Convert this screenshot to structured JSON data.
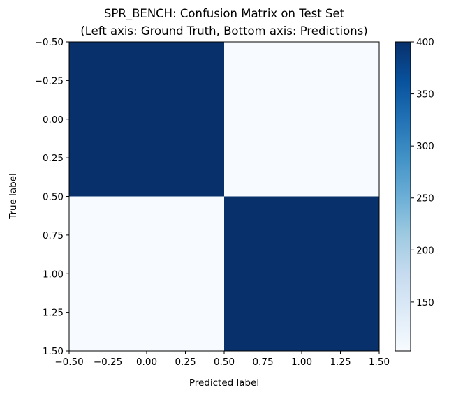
{
  "chart_data": {
    "type": "heatmap",
    "title": "SPR_BENCH: Confusion Matrix on Test Set",
    "subtitle": "(Left axis: Ground Truth, Bottom axis: Predictions)",
    "xlabel": "Predicted label",
    "ylabel": "True label",
    "xlim": [
      -0.5,
      1.5
    ],
    "ylim": [
      1.5,
      -0.5
    ],
    "x_ticks": [
      "−0.50",
      "−0.25",
      "0.00",
      "0.25",
      "0.50",
      "0.75",
      "1.00",
      "1.25",
      "1.50"
    ],
    "y_ticks": [
      "−0.50",
      "−0.25",
      "0.00",
      "0.25",
      "0.50",
      "0.75",
      "1.00",
      "1.25",
      "1.50"
    ],
    "matrix": [
      [
        400,
        103
      ],
      [
        103,
        400
      ]
    ],
    "colormap": "Blues",
    "colorbar": {
      "min": 103,
      "max": 400,
      "ticks": [
        "150",
        "200",
        "250",
        "300",
        "350",
        "400"
      ]
    },
    "grid": false
  }
}
